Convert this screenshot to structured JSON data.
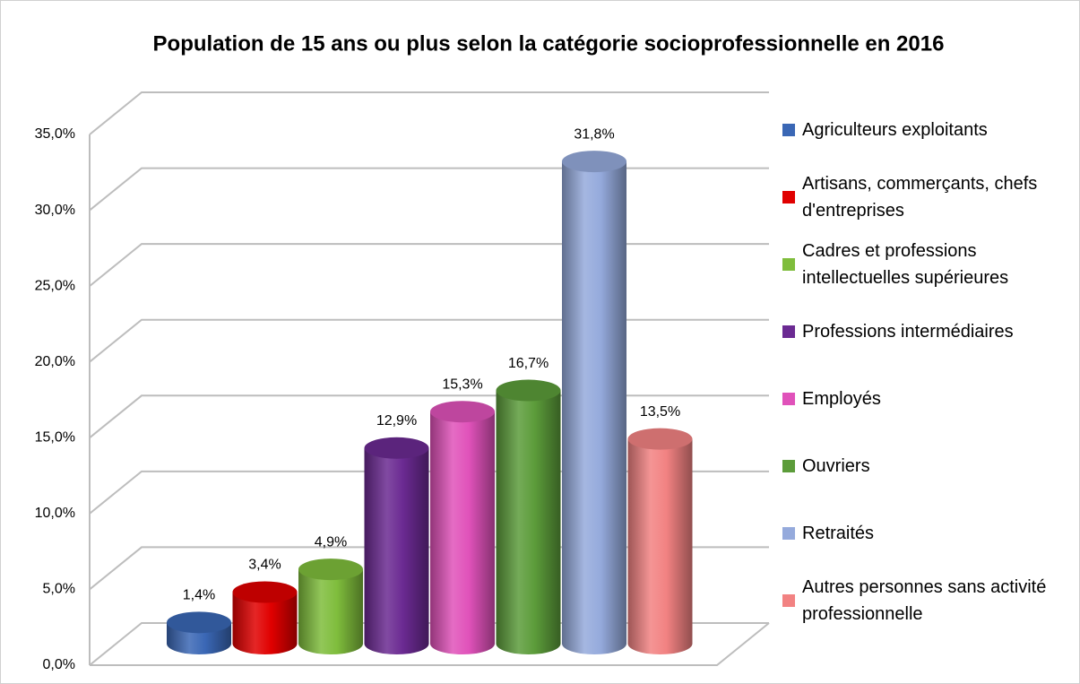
{
  "chart_data": {
    "type": "bar3d",
    "title": "Population de 15 ans ou plus selon la catégorie socioprofessionnelle en 2016",
    "series": [
      {
        "name": "Agriculteurs exploitants",
        "color": "#3a67b5",
        "values": [
          1.4
        ],
        "value_labels": [
          "1,4%"
        ]
      },
      {
        "name": "Artisans, commerçants, chefs d'entreprises",
        "color": "#e00000",
        "values": [
          3.4
        ],
        "value_labels": [
          "3,4%"
        ]
      },
      {
        "name": "Cadres et professions intellectuelles supérieures",
        "color": "#7fbd3c",
        "values": [
          4.9
        ],
        "value_labels": [
          "4,9%"
        ]
      },
      {
        "name": "Professions intermédiaires",
        "color": "#6b2a92",
        "values": [
          12.9
        ],
        "value_labels": [
          "12,9%"
        ]
      },
      {
        "name": "Employés",
        "color": "#e052ba",
        "values": [
          15.3
        ],
        "value_labels": [
          "15,3%"
        ]
      },
      {
        "name": "Ouvriers",
        "color": "#5c9c3a",
        "values": [
          16.7
        ],
        "value_labels": [
          "16,7%"
        ]
      },
      {
        "name": "Retraités",
        "color": "#95aadc",
        "values": [
          31.8
        ],
        "value_labels": [
          "31,8%"
        ]
      },
      {
        "name": "Autres personnes sans activité professionnelle",
        "color": "#f28282",
        "values": [
          13.5
        ],
        "value_labels": [
          "13,5%"
        ]
      }
    ],
    "ylim": [
      0,
      35
    ],
    "yticks": [
      {
        "value": 0,
        "label": "0,0%"
      },
      {
        "value": 5,
        "label": "5,0%"
      },
      {
        "value": 10,
        "label": "10,0%"
      },
      {
        "value": 15,
        "label": "15,0%"
      },
      {
        "value": 20,
        "label": "20,0%"
      },
      {
        "value": 25,
        "label": "25,0%"
      },
      {
        "value": 30,
        "label": "30,0%"
      },
      {
        "value": 35,
        "label": "35,0%"
      }
    ],
    "grid": true,
    "legend": "right"
  }
}
